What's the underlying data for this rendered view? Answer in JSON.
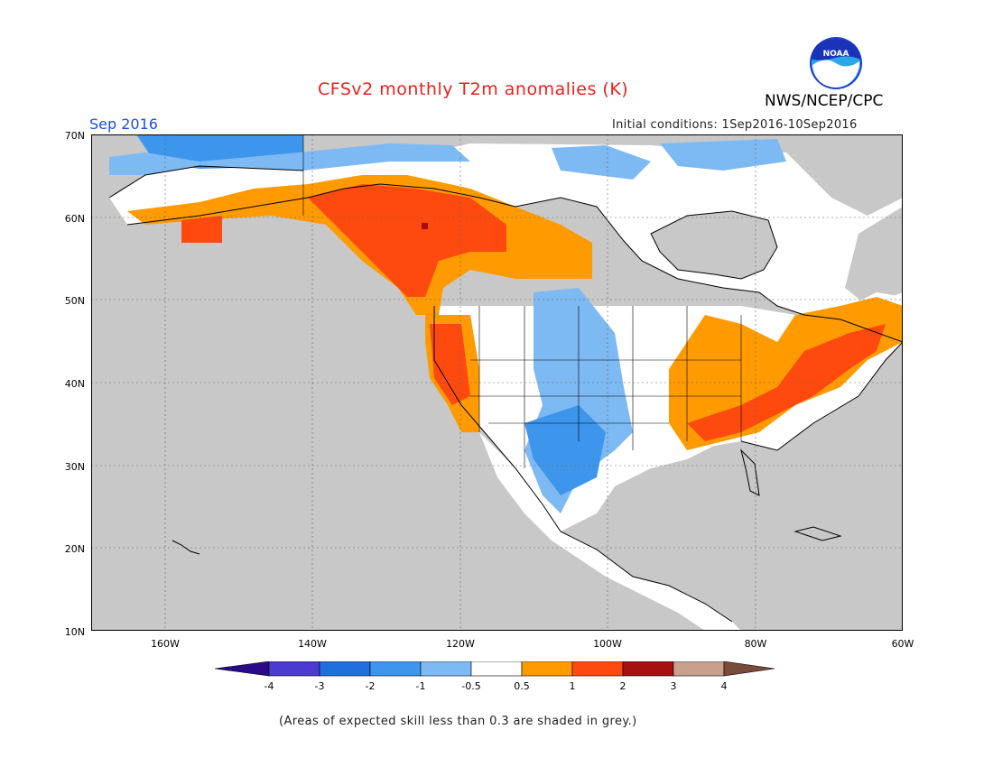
{
  "title": "CFSv2 monthly T2m anomalies (K)",
  "agency": "NWS/NCEP/CPC",
  "logo_text": "NOAA",
  "month_label": "Sep 2016",
  "init_label": "Initial conditions: 1Sep2016-10Sep2016",
  "footnote": "(Areas of expected skill less than 0.3 are shaded in grey.)",
  "map": {
    "lon_range": [
      -170,
      -60
    ],
    "lat_range": [
      10,
      70
    ],
    "lon_ticks": [
      "160W",
      "140W",
      "120W",
      "100W",
      "80W",
      "60W"
    ],
    "lat_ticks": [
      "10N",
      "20N",
      "30N",
      "40N",
      "50N",
      "60N",
      "70N"
    ],
    "grid": true,
    "ocean_color": "#c8c8c8"
  },
  "colorbar": {
    "tick_labels": [
      "-4",
      "-3",
      "-2",
      "-1",
      "-0.5",
      "0.5",
      "1",
      "2",
      "3",
      "4"
    ],
    "colors": [
      "#2a0a8a",
      "#4b3bd1",
      "#1f6fdc",
      "#3d96ec",
      "#7db9f2",
      "#ffffff",
      "#ff9b00",
      "#ff4a0f",
      "#a50f0f",
      "#c9a08e",
      "#7a4a3a"
    ]
  }
}
